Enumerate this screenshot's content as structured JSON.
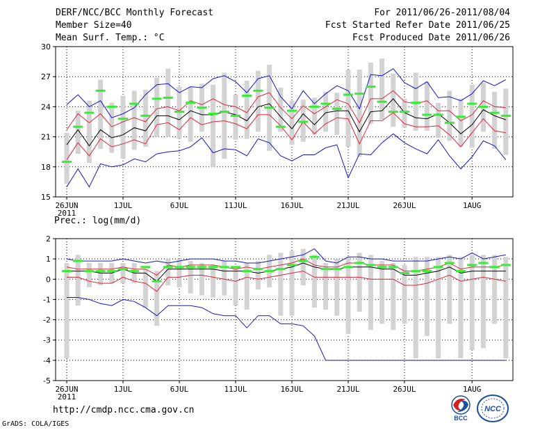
{
  "header": {
    "title": "DERF/NCC/BCC Monthly Forecast",
    "member_size": "Member Size=40",
    "variable": "Mean Surf. Temp.: °C",
    "period": "For 2011/06/26-2011/08/04",
    "start_ref": "Fcst Started Refer Date 2011/06/25",
    "produced": "Fcst Produced Date 2011/06/26"
  },
  "footer": {
    "url": "http://cmdp.ncc.cma.gov.cn",
    "credit": "GrADS: COLA/IGES",
    "logo_bcc": "BCC",
    "logo_ncc": "NCC"
  },
  "colors": {
    "mean": "#000000",
    "spread": "#e0233a",
    "range": "#1414c8",
    "box": "#d3d3d3",
    "obs": "#33ee33"
  },
  "x_labels": [
    "26JUN",
    "1JUL",
    "6JUL",
    "11JUL",
    "16JUL",
    "21JUL",
    "26JUL",
    "1AUG"
  ],
  "x_year": "2011",
  "chart_data": [
    {
      "type": "line",
      "title": "Mean Surf. Temp.: °C",
      "ylim": [
        15,
        30
      ],
      "yticks": [
        15,
        18,
        21,
        24,
        27,
        30
      ],
      "x_days": [
        1,
        2,
        3,
        4,
        5,
        6,
        7,
        8,
        9,
        10,
        11,
        12,
        13,
        14,
        15,
        16,
        17,
        18,
        19,
        20,
        21,
        22,
        23,
        24,
        25,
        26,
        27,
        28,
        29,
        30,
        31,
        32,
        33,
        34,
        35,
        36,
        37,
        38,
        39,
        40
      ],
      "series": [
        {
          "name": "ensemble max",
          "values": [
            24.2,
            25.2,
            24.0,
            24.6,
            22.9,
            23.3,
            23.9,
            25.2,
            26.2,
            26.3,
            25.4,
            26.0,
            25.9,
            26.8,
            27.1,
            26.5,
            25.4,
            26.8,
            27.1,
            25.0,
            23.8,
            25.6,
            24.3,
            25.3,
            26.1,
            25.6,
            23.8,
            27.2,
            27.1,
            27.8,
            26.4,
            25.8,
            26.5,
            24.9,
            25.0,
            24.6,
            25.3,
            26.6,
            26.1,
            26.7
          ]
        },
        {
          "name": "mean + sd",
          "values": [
            21.7,
            23.3,
            22.4,
            23.3,
            22.0,
            22.5,
            22.9,
            22.5,
            23.8,
            24.0,
            23.6,
            24.6,
            24.2,
            24.8,
            24.2,
            24.0,
            23.4,
            25.0,
            25.4,
            23.9,
            22.8,
            24.1,
            23.3,
            24.0,
            24.7,
            24.3,
            22.4,
            24.8,
            24.8,
            25.6,
            24.5,
            24.3,
            24.6,
            23.6,
            23.6,
            22.6,
            23.2,
            24.6,
            24.0,
            23.9
          ]
        },
        {
          "name": "ensemble mean",
          "values": [
            20.2,
            21.7,
            20.1,
            21.7,
            20.9,
            21.2,
            21.9,
            21.6,
            23.1,
            23.1,
            22.7,
            23.6,
            23.2,
            23.2,
            23.5,
            23.2,
            22.6,
            24.0,
            24.3,
            23.0,
            21.8,
            23.3,
            22.2,
            23.4,
            23.6,
            23.6,
            21.5,
            23.5,
            23.6,
            24.8,
            23.4,
            22.9,
            22.8,
            23.3,
            22.4,
            21.3,
            22.2,
            23.7,
            23.1,
            22.7
          ]
        },
        {
          "name": "mean - sd",
          "values": [
            18.7,
            20.4,
            19.1,
            20.8,
            20.0,
            20.3,
            20.7,
            20.3,
            22.2,
            22.4,
            21.7,
            22.9,
            22.2,
            22.5,
            22.6,
            22.3,
            21.8,
            23.2,
            23.2,
            22.1,
            20.7,
            22.5,
            21.3,
            22.3,
            22.9,
            22.8,
            20.3,
            22.6,
            22.6,
            23.4,
            22.3,
            22.0,
            22.0,
            22.1,
            21.2,
            20.0,
            21.4,
            22.8,
            21.6,
            21.4
          ]
        },
        {
          "name": "ensemble min",
          "values": [
            16.0,
            17.8,
            16.0,
            18.3,
            18.0,
            18.2,
            18.8,
            18.5,
            19.3,
            19.5,
            19.6,
            20.0,
            20.9,
            19.4,
            19.8,
            19.7,
            19.1,
            20.8,
            20.4,
            19.1,
            18.6,
            19.2,
            19.2,
            19.9,
            20.2,
            16.9,
            19.3,
            19.2,
            20.4,
            21.3,
            20.4,
            19.8,
            19.3,
            20.7,
            19.1,
            17.8,
            19.0,
            20.6,
            20.1,
            18.7
          ]
        }
      ],
      "boxes_low": [
        16.3,
        19.3,
        18.4,
        19.8,
        19.4,
        18.8,
        19.7,
        20.0,
        21.0,
        21.0,
        20.8,
        20.5,
        21.5,
        18.0,
        18.8,
        20.7,
        20.8,
        21.5,
        19.6,
        21.5,
        20.2,
        20.5,
        21.2,
        21.5,
        21.2,
        20.0,
        19.0,
        22.3,
        22.7,
        22.0,
        21.9,
        21.6,
        21.6,
        20.9,
        20.6,
        20.0,
        19.9,
        21.5,
        19.8,
        19.2
      ],
      "boxes_high": [
        21.4,
        23.6,
        24.6,
        26.7,
        24.4,
        25.1,
        25.6,
        25.7,
        26.9,
        27.8,
        26.0,
        26.0,
        26.3,
        26.2,
        27.4,
        25.2,
        26.6,
        27.6,
        28.2,
        25.9,
        24.6,
        24.7,
        24.9,
        25.5,
        25.4,
        27.7,
        27.7,
        28.4,
        28.8,
        27.3,
        24.8,
        27.4,
        26.5,
        24.4,
        25.6,
        24.8,
        26.2,
        26.4,
        25.5,
        25.8
      ],
      "observed": [
        18.5,
        22.0,
        23.4,
        25.6,
        24.0,
        22.8,
        24.3,
        23.1,
        24.8,
        24.9,
        23.5,
        24.4,
        23.9,
        23.3,
        23.5,
        23.1,
        25.1,
        25.6,
        23.9,
        22.0,
        23.6,
        22.5,
        24.0,
        24.3,
        23.8,
        25.2,
        25.3,
        26.0,
        24.5,
        23.5,
        23.5,
        24.4,
        23.2,
        23.2,
        22.4,
        23.0,
        24.3,
        24.0,
        23.4,
        23.1
      ]
    },
    {
      "type": "line",
      "title": "Prec.: log(mm/d)",
      "ylim": [
        -5,
        2
      ],
      "yticks": [
        -5,
        -4,
        -3,
        -2,
        -1,
        0,
        1,
        2
      ],
      "x_days": [
        1,
        2,
        3,
        4,
        5,
        6,
        7,
        8,
        9,
        10,
        11,
        12,
        13,
        14,
        15,
        16,
        17,
        18,
        19,
        20,
        21,
        22,
        23,
        24,
        25,
        26,
        27,
        28,
        29,
        30,
        31,
        32,
        33,
        34,
        35,
        36,
        37,
        38,
        39,
        40
      ],
      "series": [
        {
          "name": "ensemble max",
          "values": [
            1.0,
            0.9,
            0.9,
            0.9,
            0.9,
            1.0,
            0.9,
            0.8,
            0.9,
            0.8,
            0.9,
            1.0,
            1.0,
            1.0,
            0.9,
            0.9,
            0.8,
            0.8,
            0.9,
            1.0,
            1.1,
            1.2,
            1.5,
            0.9,
            0.8,
            1.1,
            1.1,
            1.0,
            1.0,
            0.9,
            0.9,
            0.9,
            0.9,
            1.0,
            1.1,
            1.0,
            1.3,
            1.0,
            1.1,
            1.2
          ]
        },
        {
          "name": "mean + sd",
          "values": [
            0.6,
            0.5,
            0.5,
            0.5,
            0.5,
            0.6,
            0.5,
            0.5,
            0.2,
            0.7,
            0.6,
            0.7,
            0.7,
            0.7,
            0.6,
            0.5,
            0.6,
            0.5,
            0.6,
            0.7,
            0.8,
            1.0,
            0.7,
            0.6,
            0.6,
            0.8,
            0.8,
            0.7,
            0.7,
            0.7,
            0.4,
            0.4,
            0.5,
            0.6,
            0.8,
            0.5,
            0.6,
            0.6,
            0.6,
            0.7
          ]
        },
        {
          "name": "ensemble mean",
          "values": [
            0.4,
            0.4,
            0.4,
            0.3,
            0.3,
            0.5,
            0.3,
            0.3,
            -0.1,
            0.5,
            0.5,
            0.5,
            0.5,
            0.5,
            0.4,
            0.4,
            0.4,
            0.3,
            0.4,
            0.5,
            0.6,
            0.8,
            0.6,
            0.5,
            0.5,
            0.6,
            0.6,
            0.6,
            0.5,
            0.5,
            0.2,
            0.2,
            0.3,
            0.4,
            0.6,
            0.3,
            0.4,
            0.4,
            0.4,
            0.4
          ]
        },
        {
          "name": "mean - sd",
          "values": [
            0.1,
            0.1,
            -0.1,
            -0.2,
            -0.2,
            0.1,
            -0.1,
            -0.2,
            -0.6,
            0.1,
            0.1,
            0.2,
            0.2,
            0.1,
            0.0,
            -0.1,
            0.1,
            0.0,
            0.1,
            0.2,
            0.3,
            0.4,
            0.1,
            0.1,
            0.1,
            0.1,
            0.1,
            0.0,
            0.0,
            0.0,
            -0.3,
            -0.3,
            -0.2,
            0.0,
            0.2,
            -0.1,
            0.0,
            0.1,
            0.0,
            -0.1
          ]
        },
        {
          "name": "ensemble min",
          "values": [
            -0.9,
            -0.9,
            -1.0,
            -1.2,
            -1.3,
            -1.0,
            -1.1,
            -1.4,
            -1.8,
            -1.3,
            -1.3,
            -1.3,
            -1.4,
            -1.7,
            -1.8,
            -1.8,
            -2.4,
            -1.8,
            -1.8,
            -2.2,
            -2.2,
            -2.3,
            -2.8,
            -4.0,
            -4.0,
            -4.0,
            -4.0,
            -4.0,
            -4.0,
            -4.0,
            -4.0,
            -4.0,
            -4.0,
            -4.0,
            -4.0,
            -4.0,
            -4.0,
            -4.0,
            -4.0,
            -4.0
          ]
        }
      ],
      "boxes_low": [
        -3.9,
        -1.3,
        -0.4,
        -0.3,
        -0.2,
        -0.2,
        -0.2,
        -1.4,
        -2.3,
        -0.3,
        -0.4,
        -0.7,
        -0.8,
        -0.9,
        -0.8,
        -1.3,
        -1.5,
        -0.5,
        -0.4,
        -1.8,
        -1.8,
        -0.3,
        -1.4,
        -1.5,
        -1.8,
        -2.7,
        -1.6,
        -2.5,
        -2.2,
        -2.5,
        -2.2,
        -3.9,
        -2.8,
        -3.9,
        -2.2,
        -3.9,
        -3.5,
        -3.4,
        -2.2,
        -3.9
      ],
      "boxes_high": [
        0.8,
        1.2,
        0.8,
        0.8,
        0.8,
        0.8,
        0.8,
        0.5,
        0.4,
        1.0,
        1.0,
        0.9,
        0.8,
        0.7,
        0.9,
        0.5,
        0.8,
        0.9,
        1.2,
        1.3,
        1.4,
        1.5,
        1.2,
        0.8,
        1.0,
        1.1,
        1.3,
        1.2,
        0.9,
        0.8,
        0.7,
        1.1,
        1.1,
        1.1,
        1.2,
        1.1,
        1.2,
        1.2,
        1.2,
        1.1
      ],
      "observed": [
        0.4,
        0.9,
        0.4,
        0.4,
        0.4,
        0.5,
        0.4,
        0.6,
        -0.1,
        0.6,
        0.6,
        0.6,
        0.6,
        0.6,
        0.6,
        0.6,
        0.4,
        0.5,
        0.4,
        0.5,
        0.7,
        0.9,
        1.1,
        0.5,
        0.5,
        0.6,
        0.8,
        0.7,
        0.6,
        0.6,
        0.3,
        0.4,
        0.4,
        0.6,
        0.8,
        0.4,
        0.7,
        0.8,
        0.6,
        0.7
      ]
    }
  ]
}
